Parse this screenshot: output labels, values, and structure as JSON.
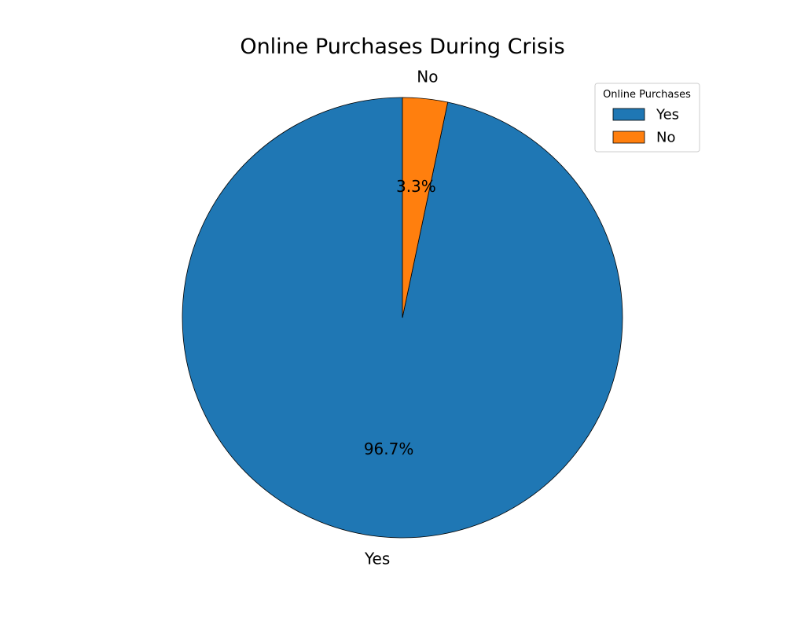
{
  "chart_data": {
    "type": "pie",
    "title": "Online Purchases During Crisis",
    "categories": [
      "Yes",
      "No"
    ],
    "values": [
      96.7,
      3.3
    ],
    "percent_labels": [
      "96.7%",
      "3.3%"
    ],
    "colors": [
      "#1f77b4",
      "#ff7f0e"
    ],
    "start_angle_deg": 90,
    "direction": "counterclockwise",
    "legend": {
      "title": "Online Purchases",
      "placement": "top-right",
      "entries": [
        "Yes",
        "No"
      ]
    }
  }
}
